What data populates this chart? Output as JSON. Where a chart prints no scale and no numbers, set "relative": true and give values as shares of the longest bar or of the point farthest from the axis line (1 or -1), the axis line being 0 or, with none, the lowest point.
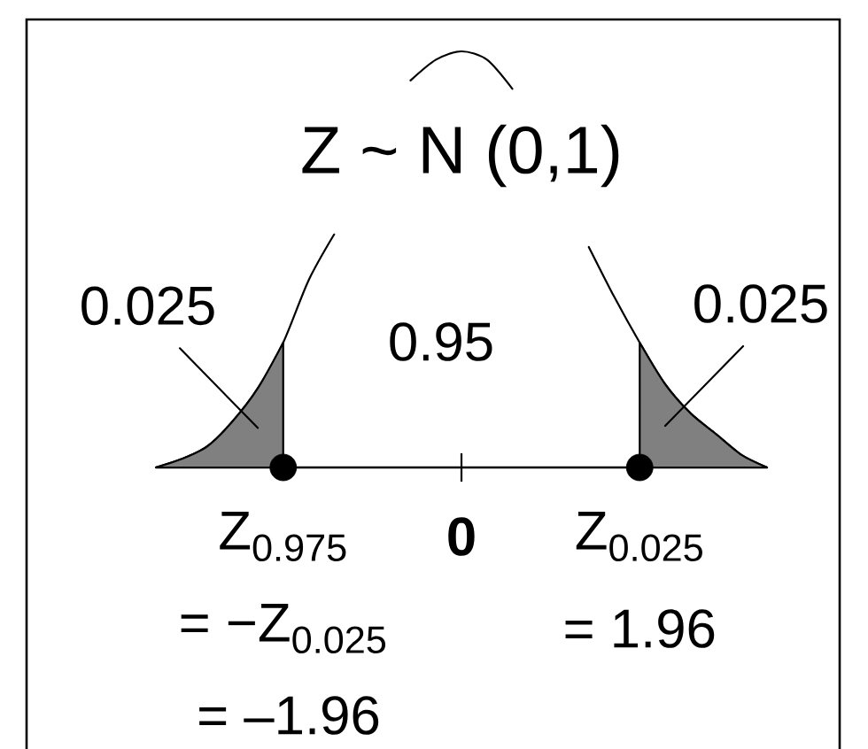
{
  "chart_data": {
    "type": "line",
    "title": "Z ~ N (0,1)",
    "relative": true,
    "categories": [
      null,
      null,
      null,
      null,
      null,
      "Z$_{0.975}$",
      null,
      null,
      null,
      null,
      null,
      null,
      "0",
      null,
      null,
      null,
      null,
      null,
      null,
      "Z$_{0.025}$",
      null,
      null,
      null,
      null,
      null
    ],
    "series": [
      {
        "color": "#000000",
        "values": [
          0,
          0.02,
          0.05,
          0.11,
          0.19,
          0.3,
          0.45,
          0.56,
          null,
          null,
          0.93,
          0.98,
          1,
          0.98,
          0.91,
          null,
          null,
          0.53,
          0.41,
          0.3,
          0.2,
          0.13,
          0.08,
          0.03,
          0
        ]
      },
      {
        "type": "area",
        "name": "0.025",
        "color": "#808080",
        "values": [
          0,
          0.02,
          0.05,
          0.11,
          0.19,
          0.3,
          null,
          null,
          null,
          null,
          null,
          null,
          null,
          null,
          null,
          null,
          null,
          null,
          null,
          null,
          null,
          null,
          null,
          null,
          null
        ]
      },
      {
        "type": "area",
        "name": "0.025",
        "color": "#808080",
        "values": [
          null,
          null,
          null,
          null,
          null,
          null,
          null,
          null,
          null,
          null,
          null,
          null,
          null,
          null,
          null,
          null,
          null,
          null,
          null,
          0.3,
          0.2,
          0.13,
          0.08,
          0.03,
          0
        ]
      },
      {
        "type": "scatter",
        "color": "#000000",
        "values": [
          null,
          null,
          null,
          null,
          null,
          0,
          null,
          null,
          null,
          null,
          null,
          null,
          null,
          null,
          null,
          null,
          null,
          null,
          null,
          0,
          null,
          null,
          null,
          null,
          null
        ]
      }
    ],
    "annotations": [
      "0.95",
      {
        "text": "= −Z$_{0.025}$",
        "x": "Z$_{0.975}$",
        "y": 0
      },
      "= –1.96",
      {
        "text": "= 1.96",
        "x": "Z$_{0.025}$",
        "y": 0
      }
    ]
  }
}
